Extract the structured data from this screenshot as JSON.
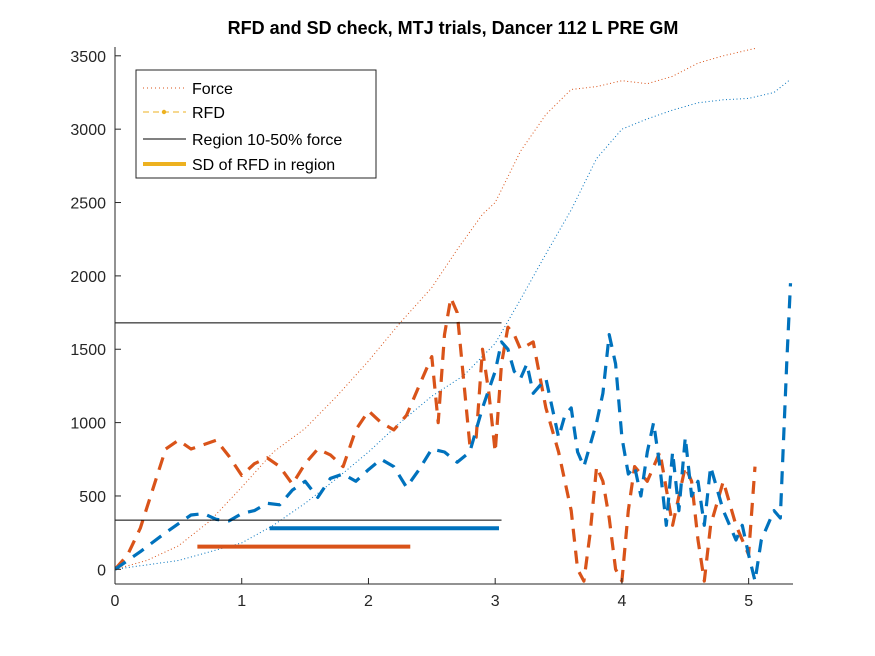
{
  "colors": {
    "blue": "#0072BD",
    "orange": "#D95319",
    "yellow": "#EDB120",
    "black": "#000000",
    "axis": "#262626"
  },
  "chart_data": {
    "type": "line",
    "title": "RFD and SD check, MTJ trials, Dancer 112 L PRE GM",
    "xlabel": "",
    "ylabel": "",
    "xlim": [
      0,
      5.35
    ],
    "ylim": [
      -100,
      3560
    ],
    "xticks": [
      0,
      1,
      2,
      3,
      4,
      5
    ],
    "yticks": [
      0,
      500,
      1000,
      1500,
      2000,
      2500,
      3000,
      3500
    ],
    "grid": false,
    "legend": {
      "placement": "top-left",
      "entries": [
        {
          "label": "Force",
          "style": "dotted",
          "color": "orange"
        },
        {
          "label": "RFD",
          "style": "dash-dot-marker",
          "color": "yellow"
        },
        {
          "label": "Region 10-50% force",
          "style": "solid-thin",
          "color": "black"
        },
        {
          "label": "SD of RFD in region",
          "style": "solid-thick",
          "color": "yellow"
        }
      ]
    },
    "series": [
      {
        "kind": "force",
        "color": "orange",
        "style": "dotted",
        "x": [
          0,
          0.25,
          0.5,
          0.75,
          1.0,
          1.25,
          1.5,
          1.75,
          2.0,
          2.25,
          2.5,
          2.7,
          2.9,
          3.0,
          3.2,
          3.4,
          3.6,
          3.8,
          4.0,
          4.2,
          4.4,
          4.6,
          4.8,
          5.0,
          5.05
        ],
        "y": [
          0,
          60,
          160,
          330,
          560,
          800,
          960,
          1180,
          1420,
          1680,
          1920,
          2180,
          2420,
          2500,
          2850,
          3100,
          3270,
          3290,
          3330,
          3310,
          3360,
          3450,
          3500,
          3540,
          3550
        ]
      },
      {
        "kind": "force",
        "color": "blue",
        "style": "dotted",
        "x": [
          0,
          0.5,
          1.0,
          1.25,
          1.5,
          1.75,
          2.0,
          2.25,
          2.5,
          2.75,
          3.0,
          3.2,
          3.4,
          3.6,
          3.8,
          4.0,
          4.2,
          4.4,
          4.6,
          4.8,
          5.0,
          5.2,
          5.33
        ],
        "y": [
          0,
          60,
          180,
          300,
          450,
          620,
          800,
          1000,
          1180,
          1320,
          1540,
          1840,
          2150,
          2450,
          2800,
          3000,
          3070,
          3130,
          3180,
          3200,
          3210,
          3250,
          3340
        ]
      },
      {
        "kind": "rfd",
        "color": "orange",
        "style": "dashed",
        "x": [
          0,
          0.1,
          0.2,
          0.3,
          0.4,
          0.5,
          0.6,
          0.7,
          0.8,
          0.9,
          1.0,
          1.1,
          1.2,
          1.3,
          1.4,
          1.5,
          1.6,
          1.7,
          1.8,
          1.9,
          2.0,
          2.1,
          2.2,
          2.3,
          2.4,
          2.5,
          2.55,
          2.6,
          2.65,
          2.7,
          2.75,
          2.8,
          2.85,
          2.9,
          2.95,
          3.0,
          3.05,
          3.1,
          3.15,
          3.2,
          3.3,
          3.4,
          3.5,
          3.6,
          3.65,
          3.7,
          3.75,
          3.8,
          3.85,
          3.9,
          3.95,
          4.0,
          4.05,
          4.1,
          4.2,
          4.3,
          4.4,
          4.5,
          4.55,
          4.6,
          4.65,
          4.7,
          4.8,
          4.9,
          5.0,
          5.05
        ],
        "y": [
          0,
          100,
          280,
          550,
          820,
          880,
          820,
          850,
          880,
          770,
          640,
          720,
          760,
          700,
          580,
          720,
          820,
          780,
          700,
          950,
          1080,
          1000,
          950,
          1050,
          1250,
          1450,
          1000,
          1600,
          1850,
          1750,
          1300,
          850,
          900,
          1500,
          1200,
          800,
          1400,
          1650,
          1600,
          1500,
          1550,
          1100,
          800,
          400,
          0,
          -80,
          250,
          700,
          600,
          350,
          0,
          -80,
          400,
          700,
          600,
          800,
          300,
          700,
          600,
          200,
          -80,
          300,
          600,
          300,
          100,
          700
        ],
        "label_positions": "unused"
      },
      {
        "kind": "rfd",
        "color": "blue",
        "style": "dashed",
        "x": [
          0,
          0.2,
          0.4,
          0.6,
          0.7,
          0.8,
          0.9,
          1.0,
          1.1,
          1.2,
          1.3,
          1.4,
          1.5,
          1.6,
          1.7,
          1.8,
          1.9,
          2.0,
          2.1,
          2.2,
          2.3,
          2.4,
          2.5,
          2.6,
          2.7,
          2.8,
          2.9,
          3.0,
          3.05,
          3.1,
          3.15,
          3.2,
          3.25,
          3.3,
          3.4,
          3.5,
          3.55,
          3.6,
          3.65,
          3.7,
          3.8,
          3.85,
          3.9,
          3.95,
          4.0,
          4.05,
          4.1,
          4.15,
          4.2,
          4.25,
          4.3,
          4.35,
          4.4,
          4.45,
          4.5,
          4.55,
          4.6,
          4.65,
          4.7,
          4.8,
          4.9,
          4.95,
          5.0,
          5.05,
          5.1,
          5.2,
          5.25,
          5.3,
          5.33
        ],
        "y": [
          0,
          120,
          250,
          370,
          380,
          340,
          330,
          380,
          400,
          450,
          440,
          540,
          600,
          490,
          620,
          650,
          600,
          680,
          750,
          700,
          560,
          680,
          820,
          800,
          730,
          800,
          1100,
          1350,
          1550,
          1500,
          1350,
          1300,
          1400,
          1200,
          1300,
          900,
          1050,
          1100,
          800,
          700,
          1000,
          1200,
          1600,
          1400,
          900,
          650,
          700,
          500,
          800,
          1000,
          700,
          300,
          800,
          400,
          900,
          500,
          600,
          300,
          700,
          400,
          200,
          300,
          100,
          -80,
          200,
          400,
          350,
          1400,
          1950
        ]
      }
    ],
    "horizontal_lines": [
      {
        "kind": "region",
        "color": "black",
        "y": 1680,
        "x": [
          0,
          3.05
        ]
      },
      {
        "kind": "region",
        "color": "black",
        "y": 335,
        "x": [
          0,
          3.05
        ]
      },
      {
        "kind": "sd",
        "color": "blue",
        "y": 280,
        "x": [
          1.22,
          3.03
        ]
      },
      {
        "kind": "sd",
        "color": "orange",
        "y": 155,
        "x": [
          0.65,
          2.33
        ]
      }
    ]
  }
}
